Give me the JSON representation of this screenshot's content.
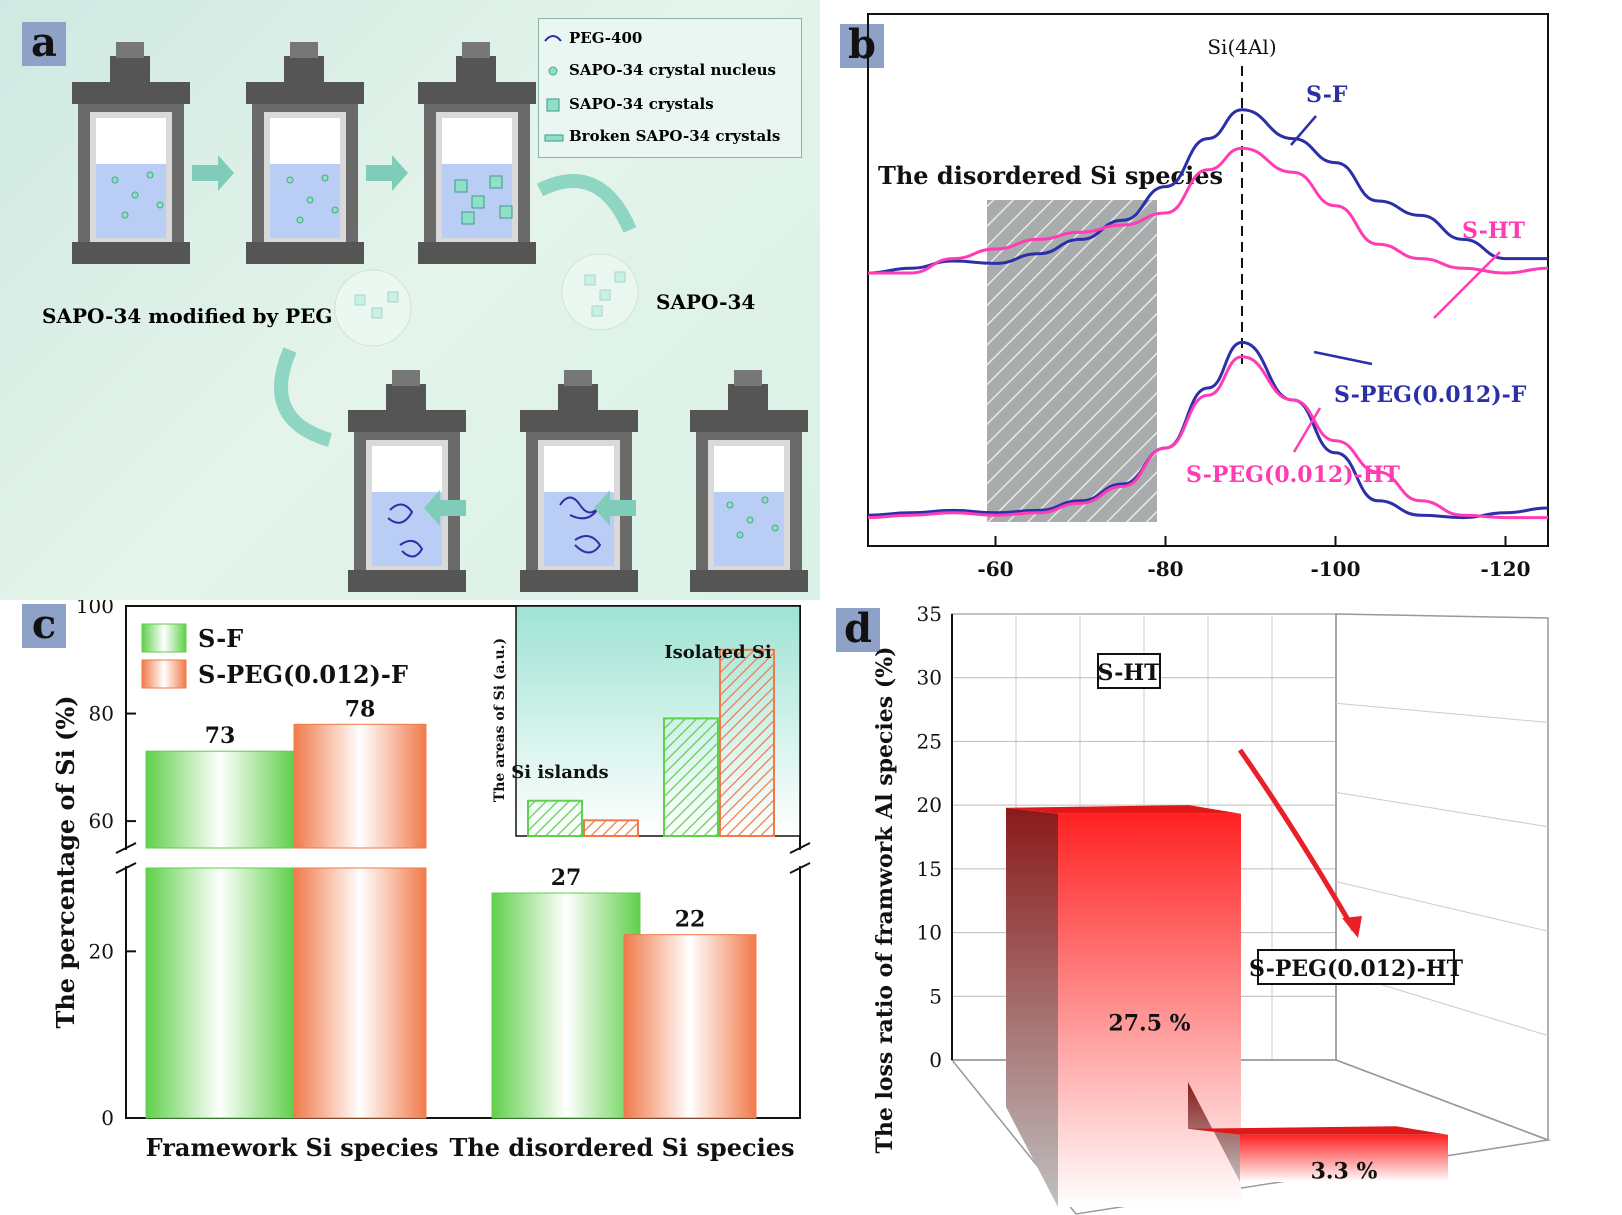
{
  "panels": {
    "a": "a",
    "b": "b",
    "c": "c",
    "d": "d"
  },
  "panel_a": {
    "legend": [
      "PEG-400",
      "SAPO-34 crystal nucleus",
      "SAPO-34 crystals",
      "Broken SAPO-34 crystals"
    ],
    "label_sapo34": "SAPO-34",
    "label_modified": "SAPO-34 modified by PEG"
  },
  "colors": {
    "blue": "#2b2fa8",
    "pink": "#ff3cb4",
    "green": "#5fd04a",
    "orange": "#f07a4a",
    "red": "#e8202a"
  },
  "chart_data": [
    {
      "panel": "b",
      "type": "line",
      "annotation": "Si(4Al)",
      "region_label": "The disordered Si species",
      "xlim": [
        -45,
        -125
      ],
      "xticks": [
        -60,
        -80,
        -100,
        -120
      ],
      "x": [
        -45,
        -50,
        -55,
        -60,
        -65,
        -70,
        -75,
        -80,
        -85,
        -89,
        -95,
        -100,
        -105,
        -110,
        -115,
        -120,
        -125
      ],
      "series": [
        {
          "name": "S-F",
          "values": [
            0.3,
            0.32,
            0.35,
            0.34,
            0.38,
            0.44,
            0.52,
            0.66,
            0.86,
            0.98,
            0.86,
            0.76,
            0.6,
            0.54,
            0.44,
            0.36,
            0.36
          ]
        },
        {
          "name": "S-HT",
          "values": [
            0.3,
            0.3,
            0.36,
            0.4,
            0.44,
            0.47,
            0.5,
            0.55,
            0.73,
            0.82,
            0.72,
            0.58,
            0.42,
            0.36,
            0.32,
            0.3,
            0.32
          ]
        },
        {
          "name": "S-PEG(0.012)-F",
          "values": [
            0.02,
            0.03,
            0.04,
            0.03,
            0.04,
            0.08,
            0.15,
            0.3,
            0.55,
            0.74,
            0.5,
            0.28,
            0.08,
            0.02,
            0.01,
            0.03,
            0.05
          ]
        },
        {
          "name": "S-PEG(0.012)-HT",
          "values": [
            0.01,
            0.02,
            0.03,
            0.02,
            0.03,
            0.07,
            0.14,
            0.3,
            0.52,
            0.68,
            0.5,
            0.33,
            0.2,
            0.08,
            0.02,
            0.01,
            0.01
          ]
        }
      ]
    },
    {
      "panel": "c",
      "type": "bar",
      "ylabel": "The percentage of Si (%)",
      "categories": [
        "Framework Si species",
        "The disordered Si species"
      ],
      "yticks": [
        "0",
        "20",
        "60",
        "80",
        "100"
      ],
      "series": [
        {
          "name": "S-F",
          "values": [
            73,
            27
          ]
        },
        {
          "name": "S-PEG(0.012)-F",
          "values": [
            78,
            22
          ]
        }
      ],
      "inset": {
        "ylabel": "The areas of Si (a.u.)",
        "categories": [
          "Si islands",
          "Isolated Si"
        ],
        "series": [
          {
            "name": "S-F",
            "values": [
              0.18,
              0.6
            ]
          },
          {
            "name": "S-PEG(0.012)-F",
            "values": [
              0.08,
              0.95
            ]
          }
        ]
      }
    },
    {
      "panel": "d",
      "type": "bar",
      "ylabel": "The loss ratio of framwork Al species (%)",
      "ylim": [
        0,
        35
      ],
      "yticks": [
        "0",
        "5",
        "10",
        "15",
        "20",
        "25",
        "30",
        "35"
      ],
      "categories": [
        "S-HT",
        "S-PEG(0.012)-HT"
      ],
      "values": [
        27.5,
        3.3
      ],
      "value_labels": [
        "27.5 %",
        "3.3 %"
      ]
    }
  ]
}
